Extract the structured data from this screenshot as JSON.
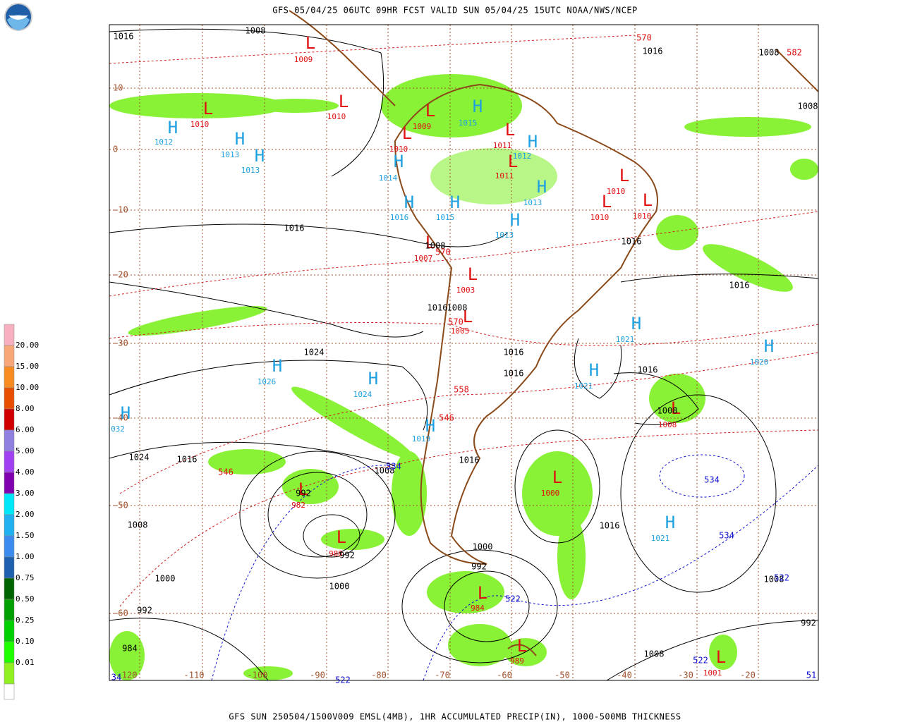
{
  "header": {
    "title": "GFS 05/04/25 06UTC 09HR FCST VALID SUN 05/04/25 15UTC NOAA/NWS/NCEP"
  },
  "footer": {
    "caption": "GFS SUN 250504/1500V009 EMSL(4MB), 1HR ACCUMULATED PRECIP(IN), 1000-500MB THICKNESS"
  },
  "legend": {
    "labels": [
      "20.00",
      "15.00",
      "10.00",
      "8.00",
      "6.00",
      "5.00",
      "4.00",
      "3.00",
      "2.00",
      "1.50",
      "1.00",
      "0.75",
      "0.50",
      "0.25",
      "0.10",
      "0.01"
    ]
  },
  "latitudes": [
    "10",
    "0",
    "-10",
    "-20",
    "-30",
    "-40",
    "-50",
    "-60"
  ],
  "longitudes": [
    "-120",
    "-110",
    "-100",
    "-90",
    "-80",
    "-70",
    "-60",
    "-50",
    "-40",
    "-30",
    "-20"
  ],
  "centers": [
    {
      "symbol": "L",
      "value": "1009"
    },
    {
      "symbol": "L",
      "value": "1010"
    },
    {
      "symbol": "H",
      "value": "1012"
    },
    {
      "symbol": "H",
      "value": "1013"
    },
    {
      "symbol": "H",
      "value": "1013"
    },
    {
      "symbol": "L",
      "value": "1010"
    },
    {
      "symbol": "L",
      "value": "1009"
    },
    {
      "symbol": "L",
      "value": "1010"
    },
    {
      "symbol": "H",
      "value": "1015"
    },
    {
      "symbol": "L",
      "value": "1011"
    },
    {
      "symbol": "H",
      "value": "1012"
    },
    {
      "symbol": "L",
      "value": "1011"
    },
    {
      "symbol": "H",
      "value": "1014"
    },
    {
      "symbol": "H",
      "value": "1013"
    },
    {
      "symbol": "L",
      "value": "1010"
    },
    {
      "symbol": "L",
      "value": "1010"
    },
    {
      "symbol": "L",
      "value": "1010"
    },
    {
      "symbol": "H",
      "value": "1016"
    },
    {
      "symbol": "H",
      "value": "1015"
    },
    {
      "symbol": "H",
      "value": "1013"
    },
    {
      "symbol": "L",
      "value": "1007"
    },
    {
      "symbol": "L",
      "value": "1003"
    },
    {
      "symbol": "L",
      "value": "1005"
    },
    {
      "symbol": "H",
      "value": "1021"
    },
    {
      "symbol": "H",
      "value": "1020"
    },
    {
      "symbol": "H",
      "value": "1026"
    },
    {
      "symbol": "H",
      "value": "1024"
    },
    {
      "symbol": "H",
      "value": "1021"
    },
    {
      "symbol": "L",
      "value": "1008"
    },
    {
      "symbol": "H",
      "value": "032"
    },
    {
      "symbol": "H",
      "value": "1019"
    },
    {
      "symbol": "L",
      "value": "982"
    },
    {
      "symbol": "L",
      "value": "1000"
    },
    {
      "symbol": "H",
      "value": "1021"
    },
    {
      "symbol": "L",
      "value": "988"
    },
    {
      "symbol": "L",
      "value": "984"
    },
    {
      "symbol": "L",
      "value": "989"
    },
    {
      "symbol": "L",
      "value": "1001"
    }
  ],
  "isobars": [
    "1016",
    "1008",
    "1016",
    "1008",
    "1008",
    "1016",
    "1008",
    "1016",
    "1016",
    "1016",
    "1008",
    "1016",
    "1016",
    "1024",
    "1016",
    "1008",
    "1024",
    "1016",
    "1008",
    "1016",
    "1008",
    "992",
    "992",
    "1000",
    "992",
    "1016",
    "1000",
    "1000",
    "992",
    "984",
    "1008",
    "1008",
    "992"
  ],
  "thickness": [
    {
      "value": "570",
      "color": "red"
    },
    {
      "value": "582",
      "color": "red"
    },
    {
      "value": "570",
      "color": "red"
    },
    {
      "value": "570",
      "color": "red"
    },
    {
      "value": "558",
      "color": "red"
    },
    {
      "value": "546",
      "color": "red"
    },
    {
      "value": "546",
      "color": "red"
    },
    {
      "value": "534",
      "color": "blue"
    },
    {
      "value": "534",
      "color": "blue"
    },
    {
      "value": "534",
      "color": "blue"
    },
    {
      "value": "522",
      "color": "blue"
    },
    {
      "value": "522",
      "color": "blue"
    },
    {
      "value": "522",
      "color": "blue"
    },
    {
      "value": "522",
      "color": "blue"
    },
    {
      "value": "51",
      "color": "blue"
    },
    {
      "value": "34",
      "color": "blue"
    }
  ]
}
